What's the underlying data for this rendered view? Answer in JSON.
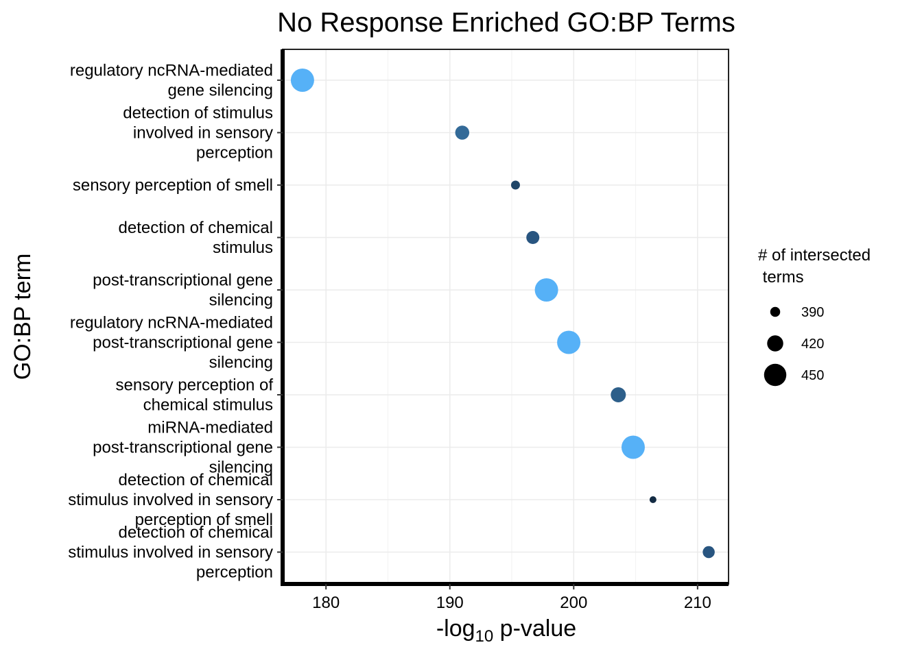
{
  "chart_data": {
    "type": "scatter",
    "title": "No Response Enriched GO:BP Terms",
    "xlabel": {
      "prefix": "-log",
      "subscript": "10",
      "suffix": " p-value"
    },
    "ylabel": "GO:BP term",
    "xlim": [
      176.5,
      212.5
    ],
    "x_ticks": [
      180,
      190,
      200,
      210
    ],
    "grid": true,
    "legend": {
      "title_lines": [
        "# of intersected",
        " terms"
      ],
      "position": "right",
      "entries": [
        {
          "label": "390",
          "size": 390
        },
        {
          "label": "420",
          "size": 420
        },
        {
          "label": "450",
          "size": 450
        }
      ]
    },
    "points": [
      {
        "term_lines": [
          "regulatory ncRNA-mediated",
          "gene silencing"
        ],
        "x": 178.1,
        "size": 455,
        "color": "#56B1F7"
      },
      {
        "term_lines": [
          "detection of stimulus",
          "involved in sensory",
          "perception"
        ],
        "x": 191.0,
        "size": 410,
        "color": "#336A98"
      },
      {
        "term_lines": [
          "sensory perception of smell"
        ],
        "x": 195.3,
        "size": 385,
        "color": "#1F4668"
      },
      {
        "term_lines": [
          "detection of chemical",
          "stimulus"
        ],
        "x": 196.7,
        "size": 405,
        "color": "#285580"
      },
      {
        "term_lines": [
          "post-transcriptional gene",
          "silencing"
        ],
        "x": 197.8,
        "size": 455,
        "color": "#56B1F7"
      },
      {
        "term_lines": [
          "regulatory ncRNA-mediated",
          "post-transcriptional gene",
          "silencing"
        ],
        "x": 199.6,
        "size": 455,
        "color": "#56B1F7"
      },
      {
        "term_lines": [
          "sensory perception of",
          "chemical stimulus"
        ],
        "x": 203.6,
        "size": 415,
        "color": "#2D5F8A"
      },
      {
        "term_lines": [
          "miRNA-mediated",
          "post-transcriptional gene",
          "silencing"
        ],
        "x": 204.8,
        "size": 455,
        "color": "#56B1F7"
      },
      {
        "term_lines": [
          "detection of chemical",
          "stimulus involved in sensory",
          "perception of smell"
        ],
        "x": 206.4,
        "size": 375,
        "color": "#132B43"
      },
      {
        "term_lines": [
          "detection of chemical",
          "stimulus involved in sensory",
          "perception"
        ],
        "x": 210.9,
        "size": 400,
        "color": "#285580"
      }
    ]
  }
}
